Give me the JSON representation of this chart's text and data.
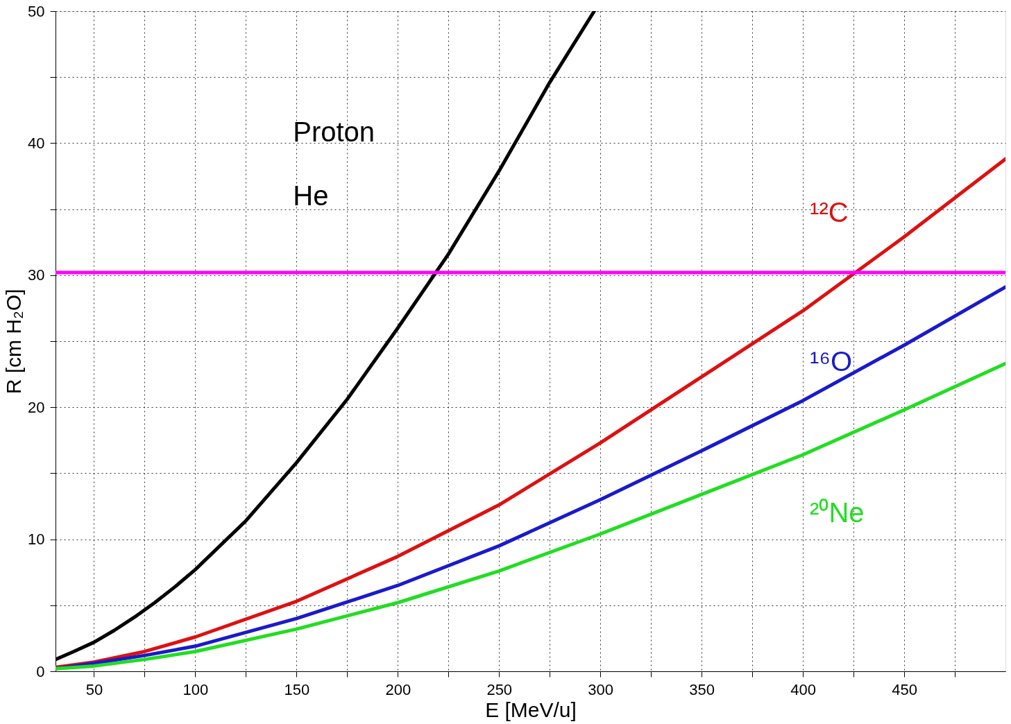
{
  "chart_data": {
    "type": "line",
    "xlabel": "E  [MeV/u]",
    "ylabel": "R  [cm  H₂O]",
    "xlim": [
      31,
      500
    ],
    "ylim": [
      0,
      50
    ],
    "xticks": [
      50,
      {
        "value": 75,
        "label": null
      },
      100,
      {
        "value": 125,
        "label": null
      },
      150,
      {
        "value": 175,
        "label": null
      },
      200,
      {
        "value": 225,
        "label": null
      },
      250,
      {
        "value": 275,
        "label": null
      },
      300,
      {
        "value": 325,
        "label": null
      },
      350,
      {
        "value": 375,
        "label": null
      },
      400,
      {
        "value": 425,
        "label": null
      },
      450,
      {
        "value": 475,
        "label": null
      }
    ],
    "yticks": [
      0,
      {
        "value": 5,
        "label": null
      },
      10,
      {
        "value": 15,
        "label": null
      },
      20,
      {
        "value": 25,
        "label": null
      },
      30,
      {
        "value": 35,
        "label": null
      },
      40,
      {
        "value": 45,
        "label": null
      },
      50
    ],
    "grid": true,
    "marker": "none",
    "line_style": "solid",
    "annotations": [
      "Proton",
      "He"
    ],
    "ref_lines": [
      {
        "axis": "y",
        "value": 30.2,
        "color": "#ff00ff"
      }
    ],
    "series": [
      {
        "color": "#000000",
        "x": [
          31,
          40,
          50,
          60,
          70,
          80,
          90,
          100,
          125,
          150,
          175,
          200,
          225,
          250,
          275,
          297
        ],
        "values": [
          0.9,
          1.5,
          2.2,
          3.1,
          4.1,
          5.2,
          6.4,
          7.7,
          11.4,
          15.8,
          20.6,
          26.0,
          31.6,
          37.9,
          44.6,
          50.0
        ]
      },
      {
        "name": "¹²C",
        "color": "#dd1111",
        "x": [
          31,
          50,
          75,
          100,
          150,
          200,
          250,
          300,
          350,
          400,
          450,
          500
        ],
        "values": [
          0.3,
          0.7,
          1.5,
          2.6,
          5.3,
          8.7,
          12.6,
          17.3,
          22.3,
          27.3,
          32.9,
          38.8
        ]
      },
      {
        "name": "¹⁶O",
        "color": "#1a1acc",
        "x": [
          31,
          50,
          75,
          100,
          150,
          200,
          250,
          300,
          350,
          400,
          450,
          500
        ],
        "values": [
          0.2,
          0.6,
          1.2,
          1.9,
          4.0,
          6.5,
          9.5,
          13.0,
          16.7,
          20.5,
          24.7,
          29.1
        ]
      },
      {
        "name": "²⁰Ne",
        "color": "#22dd22",
        "x": [
          31,
          50,
          75,
          100,
          150,
          200,
          250,
          300,
          350,
          400,
          450,
          500
        ],
        "values": [
          0.2,
          0.4,
          0.9,
          1.5,
          3.2,
          5.2,
          7.6,
          10.4,
          13.4,
          16.4,
          19.8,
          23.3
        ]
      }
    ]
  }
}
